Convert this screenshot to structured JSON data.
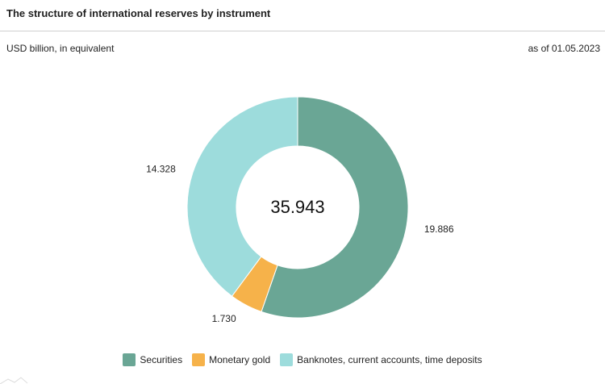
{
  "header": {
    "title": "The structure of international reserves by instrument",
    "unit": "USD billion, in equivalent",
    "as_of": "as of 01.05.2023"
  },
  "chart_data": {
    "type": "pie",
    "style": "donut",
    "center_label": "35.943",
    "slices": [
      {
        "label": "Securities",
        "value": 19.886,
        "value_label": "19.886",
        "color": "#6aa695"
      },
      {
        "label": "Monetary gold",
        "value": 1.73,
        "value_label": "1.730",
        "color": "#f6b24a"
      },
      {
        "label": "Banknotes, current accounts, time deposits",
        "value": 14.328,
        "value_label": "14.328",
        "color": "#9ddcdc"
      }
    ],
    "start": "12 o'clock",
    "direction": "clockwise",
    "legend_position": "bottom"
  }
}
